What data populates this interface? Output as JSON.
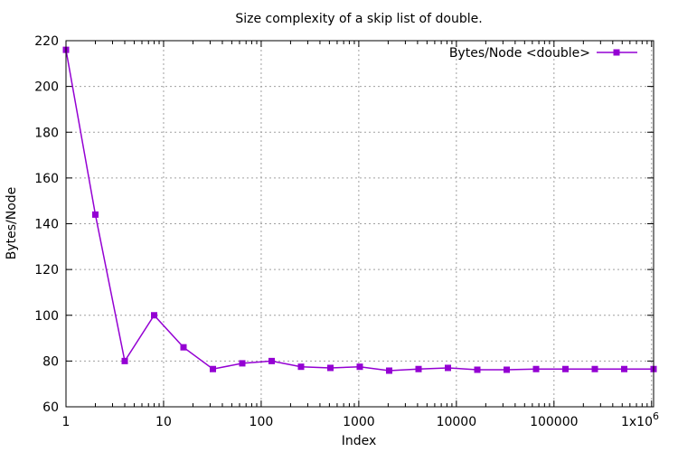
{
  "chart_data": {
    "type": "line",
    "title": "Size complexity of a skip list of double.",
    "xlabel": "Index",
    "ylabel": "Bytes/Node",
    "x_scale": "log",
    "xlim": [
      1,
      1048576
    ],
    "ylim": [
      60,
      220
    ],
    "x_ticks": [
      {
        "value": 1,
        "label": "1"
      },
      {
        "value": 10,
        "label": "10"
      },
      {
        "value": 100,
        "label": "100"
      },
      {
        "value": 1000,
        "label": "1000"
      },
      {
        "value": 10000,
        "label": "10000"
      },
      {
        "value": 100000,
        "label": "100000"
      },
      {
        "value": 1000000,
        "label": "1x10",
        "sup": "6"
      }
    ],
    "y_ticks": [
      60,
      80,
      100,
      120,
      140,
      160,
      180,
      200,
      220
    ],
    "grid": true,
    "legend_position": "top-right",
    "series": [
      {
        "name": "Bytes/Node <double>",
        "color": "#9400d3",
        "marker": "square",
        "x": [
          1,
          2,
          4,
          8,
          16,
          32,
          64,
          128,
          256,
          512,
          1024,
          2048,
          4096,
          8192,
          16384,
          32768,
          65536,
          131072,
          262144,
          524288,
          1048576
        ],
        "y": [
          216,
          144,
          80,
          100,
          86,
          76.5,
          79,
          80,
          77.5,
          77,
          77.5,
          75.8,
          76.5,
          77,
          76.2,
          76.2,
          76.5,
          76.5,
          76.5,
          76.5,
          76.5
        ]
      }
    ]
  }
}
